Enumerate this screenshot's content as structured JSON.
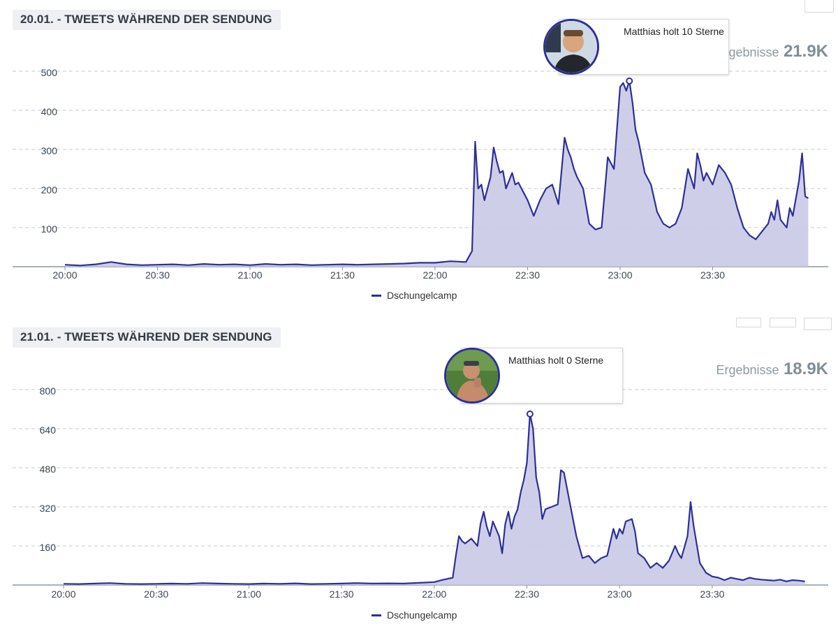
{
  "colors": {
    "line": "#2d2f97",
    "fill": "#c9c9e6",
    "grid": "#c9c9c9",
    "axis": "#8a96a0",
    "tick_text": "#3a4652"
  },
  "charts": [
    {
      "title": "20.01. - TWEETS WÄHREND DER SENDUNG",
      "results_label": "Ergebnisse",
      "results_value": "21.9K",
      "tooltip_text": "Matthias holt 10 Sterne",
      "avatar_icon": "person-photo",
      "legend": "Dschungelcamp"
    },
    {
      "title": "21.01. - TWEETS WÄHREND DER SENDUNG",
      "results_label": "Ergebnisse",
      "results_value": "18.9K",
      "tooltip_text": "Matthias holt 0 Sterne",
      "avatar_icon": "person-photo",
      "legend": "Dschungelcamp"
    }
  ],
  "chart_data": [
    {
      "type": "area",
      "title": "20.01. - TWEETS WÄHREND DER SENDUNG",
      "xlabel": "",
      "ylabel": "",
      "x_ticks": [
        "20:00",
        "20:30",
        "21:00",
        "21:30",
        "22:00",
        "22:30",
        "23:00",
        "23:30"
      ],
      "y_ticks": [
        100,
        200,
        300,
        400,
        500
      ],
      "ylim": [
        0,
        500
      ],
      "grid": true,
      "legend_position": "bottom-center",
      "series": [
        {
          "name": "Dschungelcamp",
          "points": [
            [
              "20:00",
              5
            ],
            [
              "20:05",
              3
            ],
            [
              "20:10",
              6
            ],
            [
              "20:15",
              12
            ],
            [
              "20:20",
              6
            ],
            [
              "20:25",
              4
            ],
            [
              "20:30",
              5
            ],
            [
              "20:35",
              6
            ],
            [
              "20:40",
              4
            ],
            [
              "20:45",
              7
            ],
            [
              "20:50",
              5
            ],
            [
              "20:55",
              6
            ],
            [
              "21:00",
              4
            ],
            [
              "21:05",
              7
            ],
            [
              "21:10",
              5
            ],
            [
              "21:15",
              6
            ],
            [
              "21:20",
              4
            ],
            [
              "21:25",
              5
            ],
            [
              "21:30",
              6
            ],
            [
              "21:35",
              5
            ],
            [
              "21:40",
              6
            ],
            [
              "21:45",
              7
            ],
            [
              "21:50",
              8
            ],
            [
              "21:55",
              10
            ],
            [
              "22:00",
              10
            ],
            [
              "22:05",
              14
            ],
            [
              "22:10",
              12
            ],
            [
              "22:12",
              40
            ],
            [
              "22:13",
              320
            ],
            [
              "22:14",
              200
            ],
            [
              "22:15",
              210
            ],
            [
              "22:16",
              170
            ],
            [
              "22:18",
              230
            ],
            [
              "22:19",
              305
            ],
            [
              "22:20",
              270
            ],
            [
              "22:21",
              240
            ],
            [
              "22:22",
              245
            ],
            [
              "22:23",
              200
            ],
            [
              "22:25",
              240
            ],
            [
              "22:26",
              210
            ],
            [
              "22:27",
              215
            ],
            [
              "22:28",
              200
            ],
            [
              "22:30",
              170
            ],
            [
              "22:32",
              130
            ],
            [
              "22:34",
              170
            ],
            [
              "22:36",
              200
            ],
            [
              "22:38",
              210
            ],
            [
              "22:40",
              160
            ],
            [
              "22:42",
              330
            ],
            [
              "22:43",
              300
            ],
            [
              "22:44",
              280
            ],
            [
              "22:45",
              250
            ],
            [
              "22:46",
              230
            ],
            [
              "22:48",
              200
            ],
            [
              "22:50",
              110
            ],
            [
              "22:52",
              95
            ],
            [
              "22:54",
              100
            ],
            [
              "22:56",
              280
            ],
            [
              "22:58",
              250
            ],
            [
              "23:00",
              460
            ],
            [
              "23:01",
              470
            ],
            [
              "23:02",
              450
            ],
            [
              "23:03",
              475
            ],
            [
              "23:04",
              420
            ],
            [
              "23:05",
              350
            ],
            [
              "23:06",
              320
            ],
            [
              "23:08",
              240
            ],
            [
              "23:10",
              210
            ],
            [
              "23:12",
              140
            ],
            [
              "23:14",
              110
            ],
            [
              "23:16",
              100
            ],
            [
              "23:18",
              110
            ],
            [
              "23:20",
              150
            ],
            [
              "23:22",
              250
            ],
            [
              "23:24",
              200
            ],
            [
              "23:25",
              290
            ],
            [
              "23:26",
              260
            ],
            [
              "23:27",
              220
            ],
            [
              "23:28",
              240
            ],
            [
              "23:30",
              210
            ],
            [
              "23:32",
              260
            ],
            [
              "23:34",
              240
            ],
            [
              "23:36",
              210
            ],
            [
              "23:38",
              150
            ],
            [
              "23:40",
              100
            ],
            [
              "23:42",
              80
            ],
            [
              "23:44",
              70
            ],
            [
              "23:46",
              90
            ],
            [
              "23:48",
              110
            ],
            [
              "23:49",
              140
            ],
            [
              "23:50",
              120
            ],
            [
              "23:51",
              170
            ],
            [
              "23:52",
              120
            ],
            [
              "23:54",
              100
            ],
            [
              "23:55",
              150
            ],
            [
              "23:56",
              130
            ],
            [
              "23:58",
              220
            ],
            [
              "23:59",
              290
            ],
            [
              "24:00",
              180
            ],
            [
              "24:01",
              175
            ]
          ]
        }
      ]
    },
    {
      "type": "area",
      "title": "21.01. - TWEETS WÄHREND DER SENDUNG",
      "xlabel": "",
      "ylabel": "",
      "x_ticks": [
        "20:00",
        "20:30",
        "21:00",
        "21:30",
        "22:00",
        "22:30",
        "23:00",
        "23:30"
      ],
      "y_ticks": [
        160,
        320,
        480,
        640,
        800
      ],
      "ylim": [
        0,
        800
      ],
      "grid": true,
      "legend_position": "bottom-center",
      "series": [
        {
          "name": "Dschungelcamp",
          "points": [
            [
              "20:00",
              5
            ],
            [
              "20:05",
              4
            ],
            [
              "20:10",
              6
            ],
            [
              "20:15",
              8
            ],
            [
              "20:20",
              5
            ],
            [
              "20:25",
              4
            ],
            [
              "20:30",
              5
            ],
            [
              "20:35",
              6
            ],
            [
              "20:40",
              5
            ],
            [
              "20:45",
              8
            ],
            [
              "20:50",
              6
            ],
            [
              "20:55",
              5
            ],
            [
              "21:00",
              4
            ],
            [
              "21:05",
              6
            ],
            [
              "21:10",
              5
            ],
            [
              "21:15",
              7
            ],
            [
              "21:20",
              4
            ],
            [
              "21:25",
              5
            ],
            [
              "21:30",
              6
            ],
            [
              "21:35",
              8
            ],
            [
              "21:40",
              6
            ],
            [
              "21:45",
              7
            ],
            [
              "21:50",
              6
            ],
            [
              "21:55",
              9
            ],
            [
              "22:00",
              12
            ],
            [
              "22:03",
              22
            ],
            [
              "22:06",
              30
            ],
            [
              "22:07",
              120
            ],
            [
              "22:08",
              200
            ],
            [
              "22:09",
              180
            ],
            [
              "22:10",
              170
            ],
            [
              "22:12",
              190
            ],
            [
              "22:14",
              160
            ],
            [
              "22:15",
              250
            ],
            [
              "22:16",
              300
            ],
            [
              "22:17",
              240
            ],
            [
              "22:18",
              200
            ],
            [
              "22:19",
              260
            ],
            [
              "22:20",
              230
            ],
            [
              "22:21",
              200
            ],
            [
              "22:22",
              130
            ],
            [
              "22:23",
              250
            ],
            [
              "22:24",
              300
            ],
            [
              "22:25",
              230
            ],
            [
              "22:26",
              280
            ],
            [
              "22:27",
              310
            ],
            [
              "22:28",
              380
            ],
            [
              "22:29",
              430
            ],
            [
              "22:30",
              500
            ],
            [
              "22:31",
              700
            ],
            [
              "22:32",
              640
            ],
            [
              "22:33",
              440
            ],
            [
              "22:34",
              380
            ],
            [
              "22:35",
              270
            ],
            [
              "22:36",
              310
            ],
            [
              "22:38",
              320
            ],
            [
              "22:40",
              330
            ],
            [
              "22:41",
              470
            ],
            [
              "22:42",
              460
            ],
            [
              "22:44",
              330
            ],
            [
              "22:46",
              200
            ],
            [
              "22:48",
              110
            ],
            [
              "22:50",
              120
            ],
            [
              "22:52",
              90
            ],
            [
              "22:54",
              110
            ],
            [
              "22:56",
              120
            ],
            [
              "22:58",
              230
            ],
            [
              "22:59",
              190
            ],
            [
              "23:00",
              230
            ],
            [
              "23:01",
              210
            ],
            [
              "23:02",
              260
            ],
            [
              "23:04",
              270
            ],
            [
              "23:05",
              220
            ],
            [
              "23:06",
              130
            ],
            [
              "23:08",
              110
            ],
            [
              "23:10",
              70
            ],
            [
              "23:12",
              90
            ],
            [
              "23:14",
              70
            ],
            [
              "23:16",
              100
            ],
            [
              "23:18",
              160
            ],
            [
              "23:19",
              130
            ],
            [
              "23:20",
              110
            ],
            [
              "23:22",
              200
            ],
            [
              "23:23",
              340
            ],
            [
              "23:24",
              240
            ],
            [
              "23:26",
              90
            ],
            [
              "23:28",
              50
            ],
            [
              "23:30",
              35
            ],
            [
              "23:32",
              30
            ],
            [
              "23:34",
              20
            ],
            [
              "23:36",
              30
            ],
            [
              "23:38",
              25
            ],
            [
              "23:40",
              20
            ],
            [
              "23:42",
              30
            ],
            [
              "23:44",
              25
            ],
            [
              "23:46",
              22
            ],
            [
              "23:48",
              20
            ],
            [
              "23:50",
              18
            ],
            [
              "23:52",
              22
            ],
            [
              "23:54",
              15
            ],
            [
              "23:56",
              20
            ],
            [
              "23:58",
              18
            ],
            [
              "24:00",
              15
            ]
          ]
        }
      ]
    }
  ]
}
